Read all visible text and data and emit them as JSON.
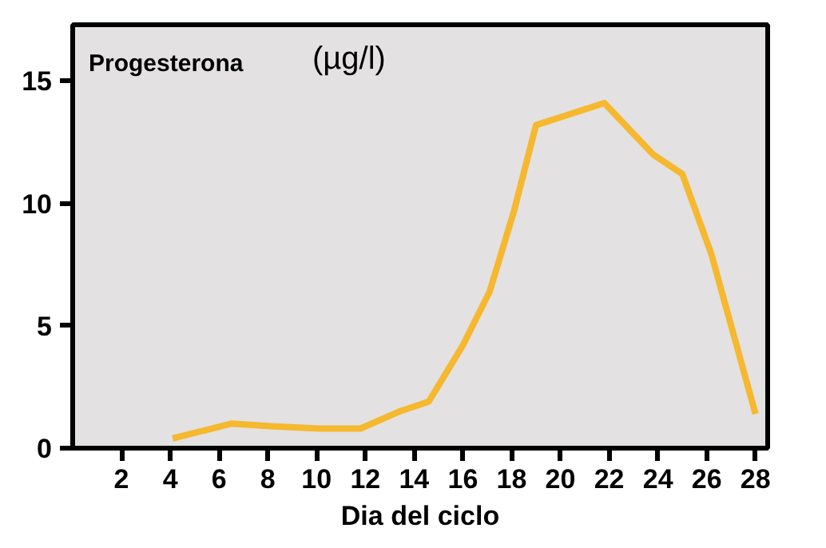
{
  "chart_data": {
    "type": "line",
    "title": "Progesterona",
    "annotations": [
      "(µg/l)"
    ],
    "xlabel": "Dia del ciclo",
    "x": [
      4.1,
      6.5,
      8.1,
      10.1,
      11.8,
      13.4,
      14.6,
      16.0,
      17.1,
      18.1,
      19.0,
      21.8,
      23.8,
      25.0,
      26.2,
      28.0
    ],
    "series": [
      {
        "color": "#f5b82e",
        "values": [
          0.4,
          1.0,
          0.9,
          0.8,
          0.8,
          1.5,
          1.9,
          4.2,
          6.4,
          9.7,
          13.2,
          14.1,
          12.0,
          11.2,
          7.9,
          1.4
        ]
      }
    ],
    "xlim": [
      0,
      28.5
    ],
    "ylim": [
      0,
      17.3
    ],
    "xticks": [
      2,
      4,
      6,
      8,
      10,
      12,
      14,
      16,
      18,
      20,
      22,
      24,
      26,
      28
    ],
    "yticks": [
      0,
      5,
      10,
      15
    ],
    "grid": false,
    "marker": "none",
    "line_style": "solid"
  }
}
